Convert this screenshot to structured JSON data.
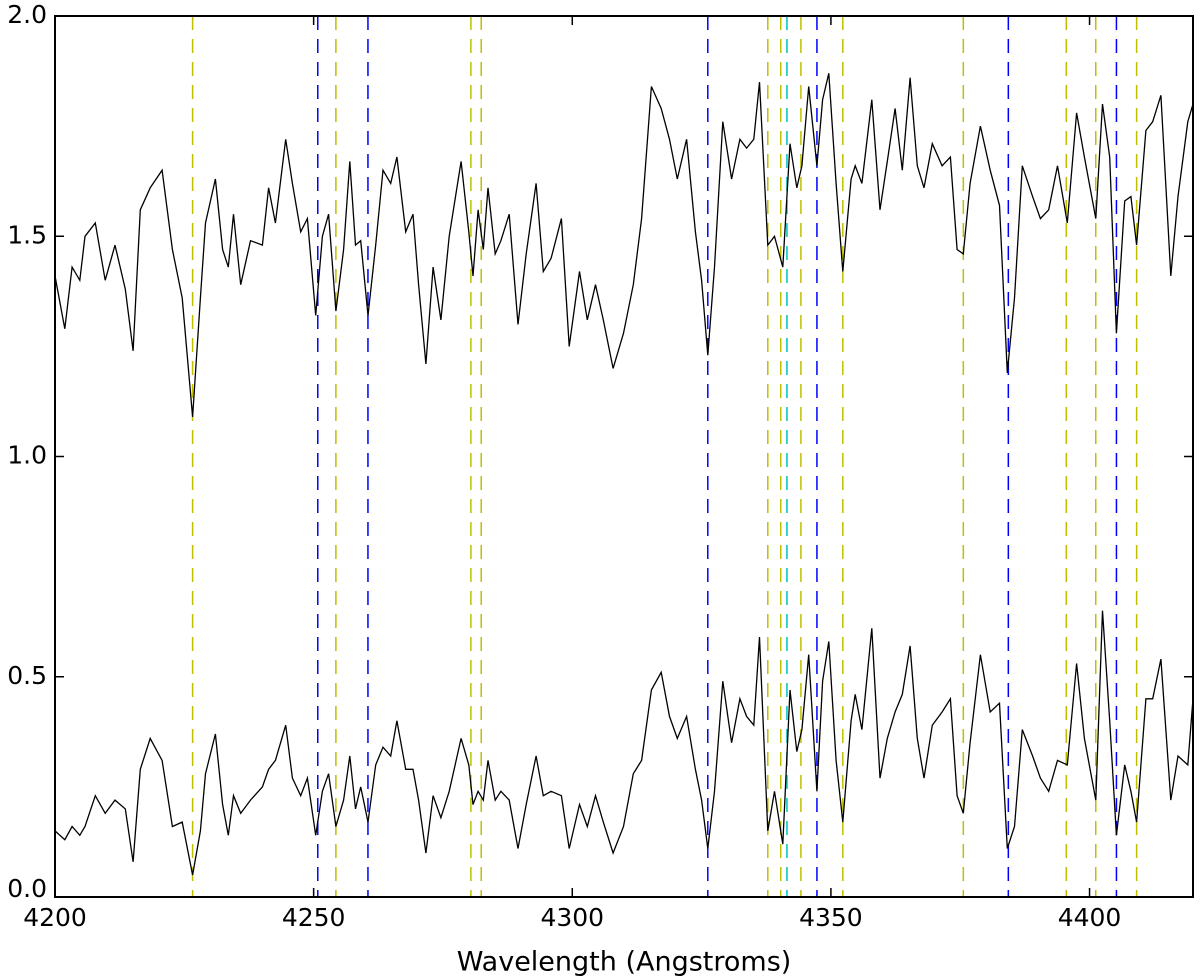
{
  "chart_data": {
    "type": "line",
    "xlabel": "Wavelength (Angstroms)",
    "xlim": [
      4200,
      4420
    ],
    "ylim": [
      0,
      2.0
    ],
    "xticks": [
      4200,
      4250,
      4300,
      4350,
      4400
    ],
    "yticks": [
      {
        "value": 0,
        "label": "0.0"
      },
      {
        "value": 0.5,
        "label": "0.5"
      },
      {
        "value": 1.0,
        "label": "1.0"
      },
      {
        "value": 1.5,
        "label": "1.5"
      },
      {
        "value": 2.0,
        "label": "2.0"
      }
    ],
    "grid": false,
    "x": [
      4200,
      4201.9,
      4203.3,
      4204.8,
      4205.8,
      4207.8,
      4209.7,
      4211.6,
      4213.6,
      4215.1,
      4216.5,
      4218.4,
      4220.7,
      4222.7,
      4224.6,
      4226.6,
      4228.1,
      4229.1,
      4231.0,
      4232.4,
      4233.5,
      4234.5,
      4235.9,
      4237.8,
      4240.1,
      4241.3,
      4242.6,
      4244.6,
      4245.9,
      4247.5,
      4248.8,
      4250.4,
      4251.7,
      4252.9,
      4254.3,
      4255.8,
      4257.0,
      4258.1,
      4259.1,
      4260.5,
      4262.0,
      4263.4,
      4264.9,
      4266.1,
      4267.8,
      4269.2,
      4270.3,
      4271.7,
      4273.1,
      4274.6,
      4276.2,
      4278.5,
      4280.0,
      4280.8,
      4281.8,
      4282.8,
      4283.7,
      4285.1,
      4286.2,
      4287.8,
      4289.5,
      4291.1,
      4293.0,
      4294.4,
      4295.9,
      4297.9,
      4299.4,
      4301.4,
      4302.9,
      4304.5,
      4306.0,
      4307.9,
      4309.9,
      4311.8,
      4313.4,
      4315.3,
      4317.2,
      4318.8,
      4320.3,
      4322.1,
      4323.8,
      4325.0,
      4326.2,
      4327.5,
      4329.1,
      4330.8,
      4332.4,
      4333.7,
      4335.1,
      4336.2,
      4337.8,
      4339.1,
      4340.7,
      4342.1,
      4343.4,
      4344.4,
      4345.7,
      4347.3,
      4348.4,
      4349.6,
      4351.0,
      4352.3,
      4353.9,
      4354.7,
      4356.0,
      4357.9,
      4359.5,
      4360.9,
      4362.4,
      4363.8,
      4365.3,
      4366.7,
      4368.0,
      4369.6,
      4371.5,
      4373.1,
      4374.4,
      4375.6,
      4376.9,
      4378.9,
      4380.8,
      4382.6,
      4384.1,
      4385.5,
      4387.0,
      4389.0,
      4390.5,
      4392.1,
      4393.8,
      4395.7,
      4397.5,
      4399.0,
      4401.2,
      4402.5,
      4403.9,
      4405.2,
      4406.8,
      4408.0,
      4409.1,
      4410.9,
      4412.2,
      4413.8,
      4415.7,
      4417.1,
      4419.0,
      4420
    ],
    "series": [
      {
        "color": "#000000",
        "values": [
          1.41,
          1.29,
          1.43,
          1.4,
          1.5,
          1.53,
          1.4,
          1.48,
          1.38,
          1.24,
          1.56,
          1.61,
          1.65,
          1.47,
          1.36,
          1.09,
          1.36,
          1.53,
          1.63,
          1.47,
          1.43,
          1.55,
          1.39,
          1.49,
          1.48,
          1.61,
          1.53,
          1.72,
          1.62,
          1.51,
          1.54,
          1.32,
          1.5,
          1.55,
          1.33,
          1.47,
          1.67,
          1.48,
          1.49,
          1.32,
          1.48,
          1.65,
          1.62,
          1.68,
          1.51,
          1.55,
          1.39,
          1.21,
          1.43,
          1.31,
          1.5,
          1.67,
          1.51,
          1.41,
          1.56,
          1.47,
          1.61,
          1.46,
          1.49,
          1.55,
          1.3,
          1.46,
          1.62,
          1.42,
          1.45,
          1.54,
          1.25,
          1.42,
          1.31,
          1.39,
          1.31,
          1.2,
          1.28,
          1.39,
          1.54,
          1.84,
          1.79,
          1.72,
          1.63,
          1.72,
          1.51,
          1.4,
          1.23,
          1.43,
          1.76,
          1.63,
          1.72,
          1.7,
          1.72,
          1.85,
          1.48,
          1.5,
          1.43,
          1.71,
          1.61,
          1.66,
          1.84,
          1.66,
          1.81,
          1.87,
          1.62,
          1.42,
          1.63,
          1.66,
          1.62,
          1.81,
          1.56,
          1.67,
          1.79,
          1.65,
          1.86,
          1.66,
          1.61,
          1.71,
          1.66,
          1.68,
          1.47,
          1.46,
          1.62,
          1.75,
          1.65,
          1.57,
          1.19,
          1.36,
          1.66,
          1.59,
          1.54,
          1.56,
          1.66,
          1.53,
          1.78,
          1.68,
          1.54,
          1.8,
          1.68,
          1.28,
          1.58,
          1.59,
          1.48,
          1.74,
          1.76,
          1.82,
          1.41,
          1.59,
          1.76,
          1.8
        ]
      },
      {
        "color": "#000000",
        "values": [
          0.15,
          0.13,
          0.16,
          0.14,
          0.16,
          0.23,
          0.19,
          0.22,
          0.2,
          0.08,
          0.29,
          0.36,
          0.31,
          0.16,
          0.17,
          0.05,
          0.15,
          0.28,
          0.37,
          0.21,
          0.14,
          0.23,
          0.19,
          0.22,
          0.25,
          0.29,
          0.31,
          0.39,
          0.27,
          0.23,
          0.27,
          0.14,
          0.24,
          0.28,
          0.16,
          0.22,
          0.32,
          0.2,
          0.25,
          0.17,
          0.3,
          0.34,
          0.32,
          0.4,
          0.29,
          0.29,
          0.22,
          0.1,
          0.23,
          0.18,
          0.24,
          0.36,
          0.3,
          0.21,
          0.24,
          0.22,
          0.31,
          0.22,
          0.24,
          0.22,
          0.11,
          0.21,
          0.32,
          0.23,
          0.24,
          0.23,
          0.11,
          0.21,
          0.16,
          0.23,
          0.17,
          0.1,
          0.16,
          0.28,
          0.31,
          0.47,
          0.51,
          0.41,
          0.36,
          0.41,
          0.29,
          0.22,
          0.11,
          0.24,
          0.49,
          0.35,
          0.45,
          0.41,
          0.39,
          0.59,
          0.15,
          0.24,
          0.12,
          0.47,
          0.33,
          0.38,
          0.55,
          0.24,
          0.49,
          0.58,
          0.31,
          0.17,
          0.4,
          0.46,
          0.38,
          0.61,
          0.27,
          0.36,
          0.42,
          0.46,
          0.57,
          0.36,
          0.27,
          0.39,
          0.42,
          0.45,
          0.23,
          0.19,
          0.35,
          0.55,
          0.42,
          0.44,
          0.11,
          0.16,
          0.38,
          0.32,
          0.27,
          0.24,
          0.31,
          0.3,
          0.53,
          0.36,
          0.22,
          0.65,
          0.4,
          0.14,
          0.3,
          0.24,
          0.17,
          0.45,
          0.45,
          0.54,
          0.22,
          0.32,
          0.3,
          0.45
        ]
      }
    ],
    "vlines": {
      "x": [
        4226.6,
        4250.8,
        4254.3,
        4260.5,
        4280.4,
        4282.4,
        4326.2,
        4337.8,
        4340.3,
        4341.5,
        4344.2,
        4347.3,
        4352.3,
        4375.6,
        4384.3,
        4395.5,
        4401.2,
        4405.2,
        4409.1
      ],
      "colors": [
        "#bfbf00",
        "#0000ff",
        "#bfbf00",
        "#0000ff",
        "#bfbf00",
        "#bfbf00",
        "#0000ff",
        "#bfbf00",
        "#bfbf00",
        "#00bfbf",
        "#bfbf00",
        "#0000ff",
        "#bfbf00",
        "#bfbf00",
        "#0000ff",
        "#bfbf00",
        "#bfbf00",
        "#0000ff",
        "#bfbf00"
      ]
    }
  }
}
